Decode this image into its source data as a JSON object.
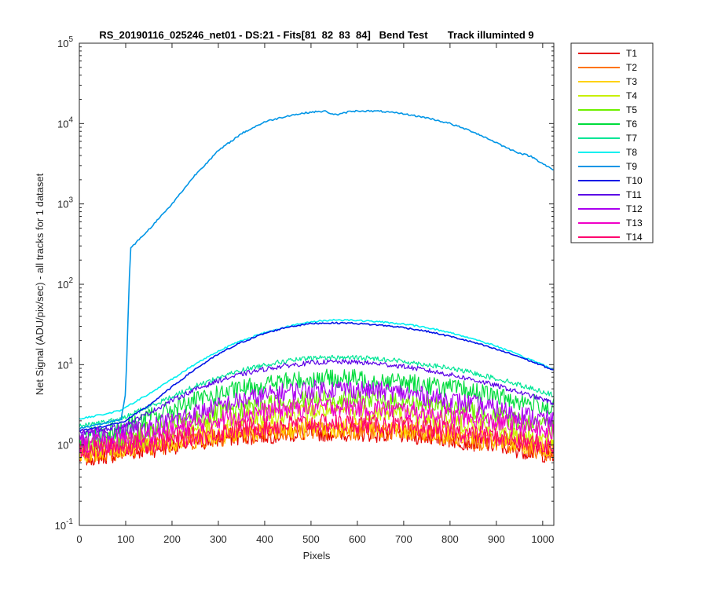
{
  "chart_data": {
    "type": "line",
    "title": "RS_20190116_025246_net01 - DS:21 - Fits[81  82  83  84]   Bend Test       Track illuminted 9",
    "xlabel": "Pixels",
    "ylabel": "Net Signal (ADU/pix/sec) - all tracks for 1 dataset",
    "xlim": [
      0,
      1024
    ],
    "ylim": [
      0.1,
      100000
    ],
    "yscale": "log",
    "x_ticks": [
      "0",
      "100",
      "200",
      "300",
      "400",
      "500",
      "600",
      "700",
      "800",
      "900",
      "1000"
    ],
    "y_ticks": [
      {
        "base": "10",
        "exp": "-1"
      },
      {
        "base": "10",
        "exp": "0"
      },
      {
        "base": "10",
        "exp": "1"
      },
      {
        "base": "10",
        "exp": "2"
      },
      {
        "base": "10",
        "exp": "3"
      },
      {
        "base": "10",
        "exp": "4"
      },
      {
        "base": "10",
        "exp": "5"
      }
    ],
    "legend_position": "outside-right-top",
    "grid": false,
    "x": [
      0,
      50,
      90,
      100,
      110,
      150,
      200,
      250,
      300,
      350,
      400,
      450,
      500,
      530,
      550,
      560,
      580,
      600,
      650,
      700,
      750,
      800,
      850,
      900,
      925,
      950,
      975,
      1000,
      1024
    ],
    "series": [
      {
        "name": "T1",
        "color": "#e60000",
        "values": [
          0.7,
          0.75,
          0.8,
          0.82,
          0.84,
          0.9,
          1.0,
          1.1,
          1.2,
          1.3,
          1.35,
          1.4,
          1.45,
          1.45,
          1.45,
          1.45,
          1.45,
          1.45,
          1.4,
          1.35,
          1.3,
          1.2,
          1.1,
          1.0,
          0.95,
          0.9,
          0.85,
          0.8,
          0.75
        ]
      },
      {
        "name": "T2",
        "color": "#ff7300",
        "values": [
          0.75,
          0.8,
          0.85,
          0.87,
          0.9,
          0.95,
          1.05,
          1.15,
          1.25,
          1.35,
          1.42,
          1.48,
          1.52,
          1.52,
          1.52,
          1.52,
          1.52,
          1.52,
          1.48,
          1.42,
          1.35,
          1.25,
          1.15,
          1.05,
          1.0,
          0.95,
          0.9,
          0.85,
          0.8
        ]
      },
      {
        "name": "T3",
        "color": "#ffd200",
        "values": [
          0.8,
          0.85,
          0.9,
          0.93,
          0.96,
          1.0,
          1.1,
          1.2,
          1.35,
          1.45,
          1.55,
          1.6,
          1.65,
          1.65,
          1.65,
          1.65,
          1.65,
          1.65,
          1.6,
          1.55,
          1.45,
          1.35,
          1.25,
          1.15,
          1.1,
          1.05,
          1.0,
          0.95,
          0.9
        ]
      },
      {
        "name": "T4",
        "color": "#c8f000",
        "values": [
          0.9,
          0.95,
          1.0,
          1.05,
          1.1,
          1.2,
          1.4,
          1.6,
          1.9,
          2.1,
          2.3,
          2.5,
          2.6,
          2.65,
          2.65,
          2.65,
          2.65,
          2.6,
          2.55,
          2.4,
          2.2,
          2.0,
          1.8,
          1.6,
          1.5,
          1.4,
          1.3,
          1.2,
          1.1
        ]
      },
      {
        "name": "T5",
        "color": "#6ef000",
        "values": [
          1.0,
          1.1,
          1.2,
          1.25,
          1.3,
          1.5,
          1.8,
          2.1,
          2.5,
          2.9,
          3.2,
          3.5,
          3.7,
          3.75,
          3.75,
          3.75,
          3.75,
          3.7,
          3.6,
          3.4,
          3.2,
          2.9,
          2.6,
          2.3,
          2.15,
          2.0,
          1.85,
          1.7,
          1.6
        ]
      },
      {
        "name": "T6",
        "color": "#00dc3c",
        "values": [
          1.3,
          1.45,
          1.6,
          1.7,
          1.8,
          2.2,
          2.8,
          3.5,
          4.2,
          5.0,
          5.7,
          6.2,
          6.6,
          6.7,
          6.7,
          6.7,
          6.7,
          6.6,
          6.4,
          6.0,
          5.6,
          5.1,
          4.6,
          4.0,
          3.8,
          3.5,
          3.3,
          3.1,
          2.9
        ]
      },
      {
        "name": "T7",
        "color": "#00e696",
        "values": [
          1.7,
          1.9,
          2.1,
          2.2,
          2.4,
          3.0,
          4.0,
          5.4,
          6.9,
          8.5,
          10.0,
          11.2,
          12.0,
          12.3,
          12.3,
          12.3,
          12.3,
          12.2,
          11.8,
          11.0,
          10.0,
          9.0,
          7.9,
          6.7,
          6.2,
          5.6,
          5.1,
          4.6,
          4.2
        ]
      },
      {
        "name": "T8",
        "color": "#00f0f0",
        "values": [
          2.1,
          2.4,
          2.7,
          2.9,
          3.2,
          4.3,
          6.6,
          10.2,
          14.8,
          20.0,
          25.0,
          30.0,
          34.0,
          35.5,
          36.0,
          36.0,
          36.0,
          35.5,
          34.0,
          32.0,
          29.0,
          25.0,
          21.0,
          17.0,
          15.0,
          13.0,
          11.5,
          10.0,
          8.6
        ]
      },
      {
        "name": "T9",
        "color": "#0095e6",
        "values": [
          1.6,
          1.85,
          2.1,
          4.5,
          280,
          480,
          1000,
          2300,
          4600,
          7500,
          10500,
          12500,
          13900,
          14200,
          13000,
          12900,
          14000,
          14400,
          14200,
          13200,
          11800,
          10000,
          7900,
          5800,
          4900,
          4300,
          3900,
          3200,
          2600
        ]
      },
      {
        "name": "T10",
        "color": "#0014e6",
        "values": [
          1.5,
          1.7,
          1.9,
          2.0,
          2.2,
          3.1,
          5.3,
          8.8,
          13.5,
          19.0,
          24.5,
          29.5,
          32.5,
          33.0,
          33.0,
          33.0,
          33.0,
          32.5,
          31.0,
          29.0,
          26.0,
          22.5,
          19.0,
          15.5,
          14.0,
          12.5,
          11.0,
          9.7,
          8.5
        ]
      },
      {
        "name": "T11",
        "color": "#5a00e6",
        "values": [
          1.4,
          1.55,
          1.7,
          1.8,
          1.9,
          2.5,
          3.6,
          4.9,
          6.3,
          7.6,
          8.8,
          9.8,
          10.5,
          10.8,
          10.8,
          10.8,
          10.8,
          10.7,
          10.2,
          9.5,
          8.5,
          7.5,
          6.5,
          5.5,
          5.0,
          4.5,
          4.1,
          3.7,
          3.3
        ]
      },
      {
        "name": "T12",
        "color": "#aa00f0",
        "values": [
          1.2,
          1.3,
          1.4,
          1.45,
          1.5,
          1.7,
          2.0,
          2.5,
          3.0,
          3.6,
          4.1,
          4.6,
          4.9,
          5.0,
          5.0,
          5.0,
          5.0,
          4.9,
          4.7,
          4.4,
          4.0,
          3.6,
          3.2,
          2.8,
          2.6,
          2.4,
          2.25,
          2.1,
          1.95
        ]
      },
      {
        "name": "T13",
        "color": "#f000c8",
        "values": [
          1.0,
          1.05,
          1.1,
          1.12,
          1.15,
          1.3,
          1.5,
          1.8,
          2.1,
          2.4,
          2.6,
          2.8,
          2.95,
          3.0,
          3.0,
          3.0,
          3.0,
          2.95,
          2.85,
          2.7,
          2.5,
          2.3,
          2.1,
          1.9,
          1.8,
          1.7,
          1.6,
          1.5,
          1.4
        ]
      },
      {
        "name": "T14",
        "color": "#ff006e",
        "values": [
          0.85,
          0.9,
          0.95,
          0.98,
          1.0,
          1.05,
          1.15,
          1.3,
          1.45,
          1.6,
          1.7,
          1.8,
          1.85,
          1.85,
          1.85,
          1.85,
          1.85,
          1.85,
          1.8,
          1.7,
          1.6,
          1.5,
          1.35,
          1.25,
          1.2,
          1.1,
          1.05,
          1.0,
          0.95
        ]
      }
    ]
  }
}
